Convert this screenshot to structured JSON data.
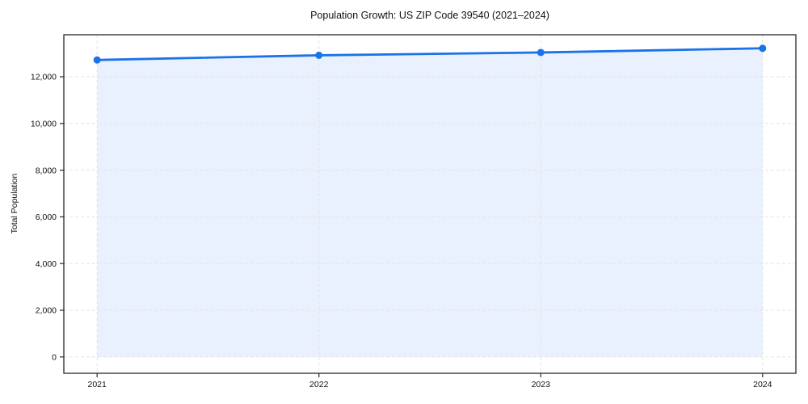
{
  "chart_data": {
    "type": "line",
    "title": "Population Growth: US ZIP Code 39540 (2021–2024)",
    "xlabel": "",
    "ylabel": "Total Population",
    "x": [
      2021,
      2022,
      2023,
      2024
    ],
    "categories": [
      "2021",
      "2022",
      "2023",
      "2024"
    ],
    "series": [
      {
        "name": "Total Population",
        "values": [
          12720,
          12920,
          13040,
          13220
        ]
      }
    ],
    "area_fill_baseline": 0,
    "yticks": {
      "values": [
        0,
        2000,
        4000,
        6000,
        8000,
        10000,
        12000
      ],
      "labels": [
        "0",
        "2,000",
        "4,000",
        "6,000",
        "8,000",
        "10,000",
        "12,000"
      ]
    },
    "xticks": {
      "values": [
        2021,
        2022,
        2023,
        2024
      ],
      "labels": [
        "2021",
        "2022",
        "2023",
        "2024"
      ]
    },
    "xlim": [
      2020.85,
      2024.15
    ],
    "ylim": [
      -700,
      13800
    ],
    "grid": "dashed",
    "legend": "none",
    "colors": {
      "line": "#1a73e8",
      "marker": "#1a73e8",
      "fill": "rgba(26, 115, 232, 0.10)",
      "grid": "#e4e4e4",
      "spine": "#262626",
      "tick": "#262626",
      "text": "#111111",
      "background": "#ffffff"
    }
  }
}
